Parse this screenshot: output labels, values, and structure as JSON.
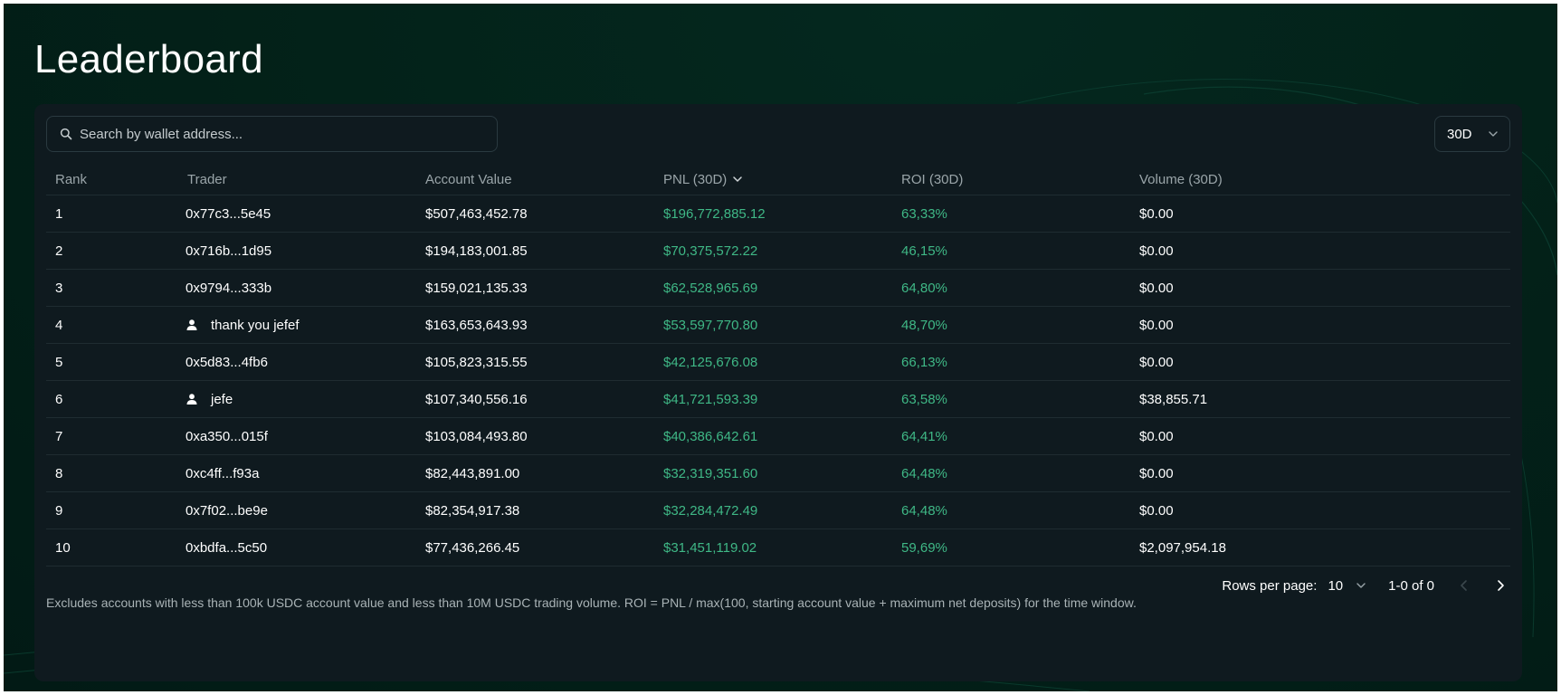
{
  "page": {
    "title": "Leaderboard"
  },
  "search": {
    "placeholder": "Search by wallet address..."
  },
  "period": {
    "selected": "30D"
  },
  "table": {
    "headers": {
      "rank": "Rank",
      "trader": "Trader",
      "account_value": "Account Value",
      "pnl": "PNL (30D)",
      "roi": "ROI (30D)",
      "volume": "Volume (30D)"
    },
    "rows": [
      {
        "rank": "1",
        "trader": "0x77c3...5e45",
        "has_user_icon": false,
        "account_value": "$507,463,452.78",
        "pnl": "$196,772,885.12",
        "roi": "63,33%",
        "volume": "$0.00"
      },
      {
        "rank": "2",
        "trader": "0x716b...1d95",
        "has_user_icon": false,
        "account_value": "$194,183,001.85",
        "pnl": "$70,375,572.22",
        "roi": "46,15%",
        "volume": "$0.00"
      },
      {
        "rank": "3",
        "trader": "0x9794...333b",
        "has_user_icon": false,
        "account_value": "$159,021,135.33",
        "pnl": "$62,528,965.69",
        "roi": "64,80%",
        "volume": "$0.00"
      },
      {
        "rank": "4",
        "trader": "thank you jefef",
        "has_user_icon": true,
        "account_value": "$163,653,643.93",
        "pnl": "$53,597,770.80",
        "roi": "48,70%",
        "volume": "$0.00"
      },
      {
        "rank": "5",
        "trader": "0x5d83...4fb6",
        "has_user_icon": false,
        "account_value": "$105,823,315.55",
        "pnl": "$42,125,676.08",
        "roi": "66,13%",
        "volume": "$0.00"
      },
      {
        "rank": "6",
        "trader": "jefe",
        "has_user_icon": true,
        "account_value": "$107,340,556.16",
        "pnl": "$41,721,593.39",
        "roi": "63,58%",
        "volume": "$38,855.71"
      },
      {
        "rank": "7",
        "trader": "0xa350...015f",
        "has_user_icon": false,
        "account_value": "$103,084,493.80",
        "pnl": "$40,386,642.61",
        "roi": "64,41%",
        "volume": "$0.00"
      },
      {
        "rank": "8",
        "trader": "0xc4ff...f93a",
        "has_user_icon": false,
        "account_value": "$82,443,891.00",
        "pnl": "$32,319,351.60",
        "roi": "64,48%",
        "volume": "$0.00"
      },
      {
        "rank": "9",
        "trader": "0x7f02...be9e",
        "has_user_icon": false,
        "account_value": "$82,354,917.38",
        "pnl": "$32,284,472.49",
        "roi": "64,48%",
        "volume": "$0.00"
      },
      {
        "rank": "10",
        "trader": "0xbdfa...5c50",
        "has_user_icon": false,
        "account_value": "$77,436,266.45",
        "pnl": "$31,451,119.02",
        "roi": "59,69%",
        "volume": "$2,097,954.18"
      }
    ]
  },
  "pagination": {
    "rows_per_page_label": "Rows per page:",
    "rows_per_page_value": "10",
    "range_text": "1-0 of 0"
  },
  "footnote": "Excludes accounts with less than 100k USDC account value and less than 10M USDC trading volume. ROI = PNL / max(100, starting account value + maximum net deposits) for the time window.",
  "colors": {
    "background": "#032219",
    "card": "#0f1a1f",
    "positive": "#3fb886",
    "border": "#1f2c31"
  },
  "icons": {
    "search": "search-icon",
    "chevron": "chevron-down-icon",
    "user": "user-icon",
    "prev": "chevron-left-icon",
    "next": "chevron-right-icon"
  }
}
